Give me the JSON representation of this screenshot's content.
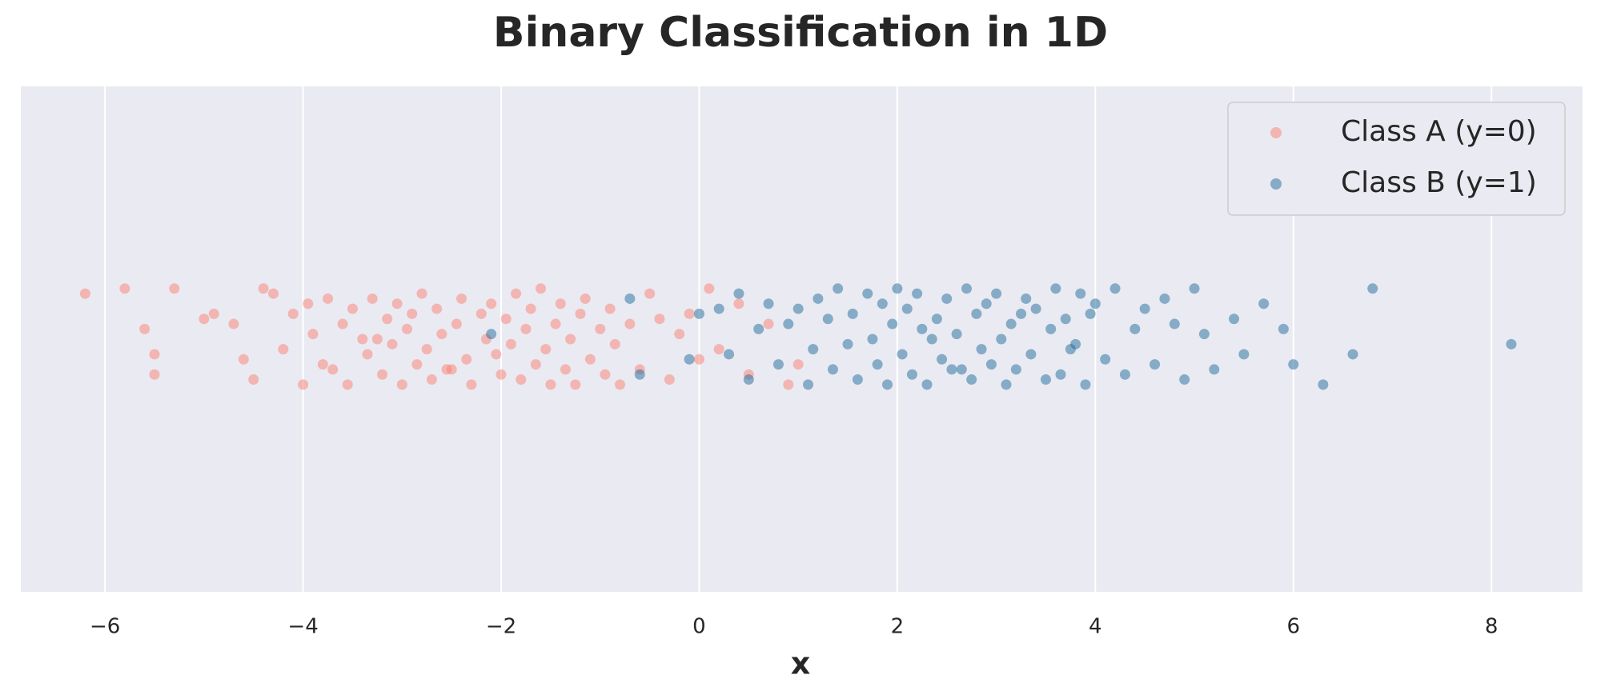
{
  "chart_data": {
    "type": "scatter",
    "title": "Binary Classification in 1D",
    "xlabel": "x",
    "xlim": [
      -6.85,
      8.92
    ],
    "ylim": [
      -0.5,
      0.5
    ],
    "xticks": [
      {
        "value": -6,
        "label": "−6"
      },
      {
        "value": -4,
        "label": "−4"
      },
      {
        "value": -2,
        "label": "−2"
      },
      0,
      2,
      4,
      6,
      8
    ],
    "grid": true,
    "legend": "upper right",
    "series": [
      {
        "name": "Class A (y=0)",
        "color": "#fa8072",
        "x": [
          -6.2,
          -5.8,
          -5.6,
          -5.5,
          -5.5,
          -5.3,
          -5.0,
          -4.9,
          -4.7,
          -4.6,
          -4.5,
          -4.4,
          -4.3,
          -4.2,
          -4.1,
          -4.0,
          -3.95,
          -3.9,
          -3.8,
          -3.75,
          -3.7,
          -3.6,
          -3.55,
          -3.5,
          -3.4,
          -3.35,
          -3.3,
          -3.2,
          -3.15,
          -3.1,
          -3.05,
          -3.0,
          -2.95,
          -2.9,
          -2.85,
          -2.8,
          -2.75,
          -2.7,
          -2.65,
          -2.6,
          -2.5,
          -2.45,
          -2.4,
          -2.35,
          -2.3,
          -2.2,
          -2.15,
          -2.1,
          -2.05,
          -2.0,
          -1.95,
          -1.9,
          -1.85,
          -1.8,
          -1.75,
          -1.7,
          -1.65,
          -1.6,
          -1.55,
          -1.5,
          -1.45,
          -1.4,
          -1.35,
          -1.3,
          -1.25,
          -1.2,
          -1.15,
          -1.1,
          -1.0,
          -0.95,
          -0.9,
          -0.85,
          -0.8,
          -0.7,
          -0.6,
          -0.5,
          -0.4,
          -0.3,
          -0.2,
          -0.1,
          0.0,
          0.1,
          0.2,
          0.4,
          0.5,
          0.7,
          0.9,
          1.0,
          -3.25,
          -2.55
        ],
        "values": [
          0.09,
          0.1,
          0.02,
          -0.03,
          -0.07,
          0.1,
          0.04,
          0.05,
          0.03,
          -0.04,
          -0.08,
          0.1,
          0.09,
          -0.02,
          0.05,
          -0.09,
          0.07,
          0.01,
          -0.05,
          0.08,
          -0.06,
          0.03,
          -0.09,
          0.06,
          0.0,
          -0.03,
          0.08,
          -0.07,
          0.04,
          -0.01,
          0.07,
          -0.09,
          0.02,
          0.05,
          -0.05,
          0.09,
          -0.02,
          -0.08,
          0.06,
          0.01,
          -0.06,
          0.03,
          0.08,
          -0.04,
          -0.09,
          0.05,
          0.0,
          0.07,
          -0.03,
          -0.07,
          0.04,
          -0.01,
          0.09,
          -0.08,
          0.02,
          0.06,
          -0.05,
          0.1,
          -0.02,
          -0.09,
          0.03,
          0.07,
          -0.06,
          0.0,
          -0.09,
          0.05,
          0.08,
          -0.04,
          0.02,
          -0.07,
          0.06,
          -0.01,
          -0.09,
          0.03,
          -0.06,
          0.09,
          0.04,
          -0.08,
          0.01,
          0.05,
          -0.04,
          0.1,
          -0.02,
          0.07,
          -0.07,
          0.03,
          -0.09,
          -0.05,
          0.0,
          -0.06
        ]
      },
      {
        "name": "Class B (y=1)",
        "color": "#1f6b9c",
        "x": [
          -2.1,
          -0.7,
          -0.6,
          -0.1,
          0.0,
          0.2,
          0.3,
          0.4,
          0.5,
          0.6,
          0.7,
          0.8,
          0.9,
          1.0,
          1.1,
          1.15,
          1.2,
          1.3,
          1.35,
          1.4,
          1.5,
          1.55,
          1.6,
          1.7,
          1.75,
          1.8,
          1.85,
          1.9,
          1.95,
          2.0,
          2.05,
          2.1,
          2.15,
          2.2,
          2.25,
          2.3,
          2.4,
          2.45,
          2.5,
          2.55,
          2.6,
          2.7,
          2.75,
          2.8,
          2.85,
          2.9,
          2.95,
          3.0,
          3.05,
          3.1,
          3.15,
          3.2,
          3.3,
          3.35,
          3.4,
          3.5,
          3.55,
          3.6,
          3.65,
          3.7,
          3.8,
          3.85,
          3.9,
          3.95,
          4.0,
          4.1,
          4.2,
          4.3,
          4.4,
          4.5,
          4.6,
          4.7,
          4.8,
          4.9,
          5.0,
          5.1,
          5.2,
          5.4,
          5.5,
          5.7,
          5.9,
          6.0,
          6.3,
          6.6,
          6.8,
          8.2,
          2.35,
          3.25,
          3.75,
          2.65
        ],
        "values": [
          0.01,
          0.08,
          -0.07,
          -0.04,
          0.05,
          0.06,
          -0.03,
          0.09,
          -0.08,
          0.02,
          0.07,
          -0.05,
          0.03,
          0.06,
          -0.09,
          -0.02,
          0.08,
          0.04,
          -0.06,
          0.1,
          -0.01,
          0.05,
          -0.08,
          0.09,
          0.0,
          -0.05,
          0.07,
          -0.09,
          0.03,
          0.1,
          -0.03,
          0.06,
          -0.07,
          0.09,
          0.02,
          -0.09,
          0.04,
          -0.04,
          0.08,
          -0.06,
          0.01,
          0.1,
          -0.08,
          0.05,
          -0.02,
          0.07,
          -0.05,
          0.09,
          0.0,
          -0.09,
          0.03,
          -0.06,
          0.08,
          -0.03,
          0.06,
          -0.08,
          0.02,
          0.1,
          -0.07,
          0.04,
          -0.01,
          0.09,
          -0.09,
          0.05,
          0.07,
          -0.04,
          0.1,
          -0.07,
          0.02,
          0.06,
          -0.05,
          0.08,
          0.03,
          -0.08,
          0.1,
          0.01,
          -0.06,
          0.04,
          -0.03,
          0.07,
          0.02,
          -0.05,
          -0.09,
          -0.03,
          0.1,
          -0.01,
          0.0,
          0.05,
          -0.02,
          -0.06
        ]
      }
    ]
  }
}
